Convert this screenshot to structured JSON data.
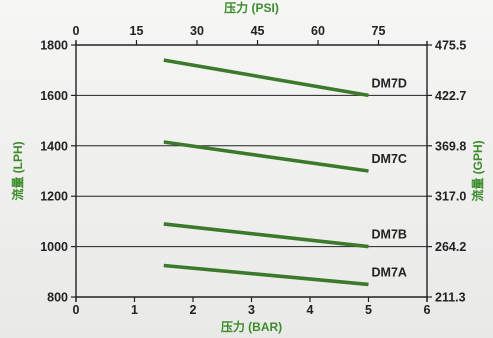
{
  "chart_data": {
    "type": "line",
    "x_bottom": {
      "label": "压力 (BAR)",
      "range": [
        0,
        6
      ],
      "ticks": [
        "0",
        "1",
        "2",
        "3",
        "4",
        "5",
        "6"
      ]
    },
    "x_top": {
      "label": "压力 (PSI)",
      "ticks": [
        {
          "text": "0",
          "bar": 0
        },
        {
          "text": "15",
          "bar": 1.034
        },
        {
          "text": "30",
          "bar": 2.068
        },
        {
          "text": "45",
          "bar": 3.103
        },
        {
          "text": "60",
          "bar": 4.137
        },
        {
          "text": "75",
          "bar": 5.171
        }
      ]
    },
    "y_left": {
      "label": "流量 (LPH)",
      "range": [
        800,
        1800
      ],
      "ticks": [
        "800",
        "1000",
        "1200",
        "1400",
        "1600",
        "1800"
      ]
    },
    "y_right": {
      "label": "流量 (GPH)",
      "ticks": [
        "211.3",
        "264.2",
        "317.0",
        "369.8",
        "422.7",
        "475.5"
      ]
    },
    "grid": {
      "horizontal": true,
      "vertical": false
    },
    "series": [
      {
        "name": "DM7D",
        "x": [
          1.5,
          5.0
        ],
        "y": [
          1740,
          1600
        ]
      },
      {
        "name": "DM7C",
        "x": [
          1.5,
          5.0
        ],
        "y": [
          1415,
          1300
        ]
      },
      {
        "name": "DM7B",
        "x": [
          1.5,
          5.0
        ],
        "y": [
          1090,
          1000
        ]
      },
      {
        "name": "DM7A",
        "x": [
          1.5,
          5.0
        ],
        "y": [
          925,
          850
        ]
      }
    ],
    "colors": {
      "series": "#3c7a2b",
      "axis_title": "#3c8c2c",
      "axis": "#222222",
      "grid": "#222222"
    }
  }
}
